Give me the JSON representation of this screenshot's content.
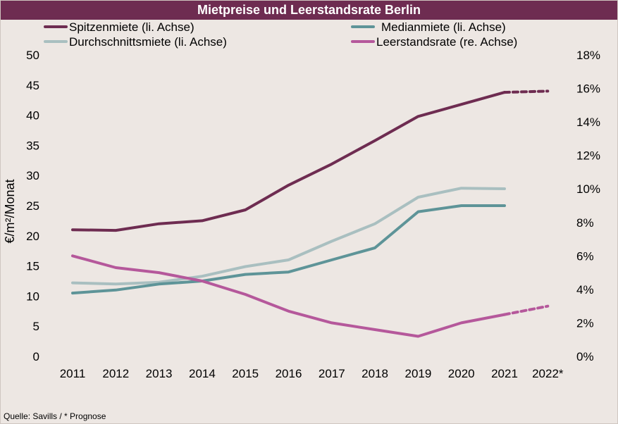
{
  "chart_data": {
    "type": "line",
    "title": "Mietpreise und Leerstandsrate Berlin",
    "ylabel": "€/m²/Monat",
    "source": "Quelle: Savills / * Prognose",
    "categories": [
      "2011",
      "2012",
      "2013",
      "2014",
      "2015",
      "2016",
      "2017",
      "2018",
      "2019",
      "2020",
      "2021",
      "2022*"
    ],
    "forecast_from_index": 10,
    "y_left": {
      "min": 0,
      "max": 50,
      "step": 5,
      "tick_labels": [
        "0",
        "5",
        "10",
        "15",
        "20",
        "25",
        "30",
        "35",
        "40",
        "45",
        "50"
      ]
    },
    "y_right": {
      "min": 0,
      "max": 18,
      "step": 2,
      "tick_labels": [
        "0%",
        "2%",
        "4%",
        "6%",
        "8%",
        "10%",
        "12%",
        "14%",
        "16%",
        "18%"
      ]
    },
    "grid": false,
    "legend_position": "top",
    "series": [
      {
        "name": "Spitzenmiete (li. Achse)",
        "axis": "left",
        "color": "#6e2c51",
        "values": [
          21.0,
          20.9,
          22.0,
          22.5,
          24.3,
          28.4,
          31.9,
          35.8,
          39.8,
          41.8,
          43.8,
          44.0
        ]
      },
      {
        "name": "Medianmiete (li. Achse)",
        "axis": "left",
        "color": "#5e9498",
        "values": [
          10.5,
          11.0,
          12.0,
          12.5,
          13.6,
          14.0,
          16.0,
          18.0,
          24.0,
          25.0,
          25.0,
          null
        ]
      },
      {
        "name": "Durchschnittsmiete (li. Achse)",
        "axis": "left",
        "color": "#a9bfc0",
        "values": [
          12.2,
          12.0,
          12.3,
          13.3,
          14.9,
          16.0,
          19.1,
          22.0,
          26.4,
          27.9,
          27.8,
          null
        ]
      },
      {
        "name": "Leerstandsrate (re. Achse)",
        "axis": "right",
        "color": "#b5589b",
        "values": [
          6.0,
          5.3,
          5.0,
          4.5,
          3.7,
          2.7,
          2.0,
          1.6,
          1.2,
          2.0,
          2.5,
          3.0
        ]
      }
    ]
  }
}
